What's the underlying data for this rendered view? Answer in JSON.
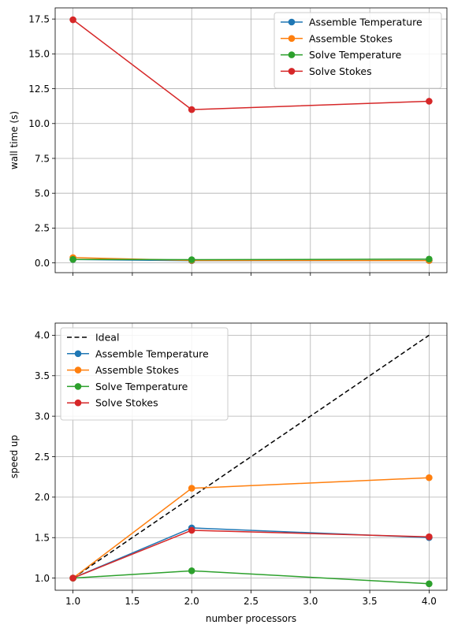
{
  "chart_data": [
    {
      "type": "line",
      "ylabel": "wall time (s)",
      "xlabel": "",
      "x": [
        1.0,
        2.0,
        4.0
      ],
      "xlim": [
        0.85,
        4.15
      ],
      "ylim": [
        -0.7,
        18.3
      ],
      "xticks": [
        1.0,
        1.5,
        2.0,
        2.5,
        3.0,
        3.5,
        4.0
      ],
      "yticks": [
        0.0,
        2.5,
        5.0,
        7.5,
        10.0,
        12.5,
        15.0,
        17.5
      ],
      "yticklabels": [
        "0.0",
        "2.5",
        "5.0",
        "7.5",
        "10.0",
        "12.5",
        "15.0",
        "17.5"
      ],
      "show_xticklabels": false,
      "grid": true,
      "legend_position": "upper-right",
      "series": [
        {
          "name": "Assemble Temperature",
          "color": "#1f77b4",
          "values": [
            0.25,
            0.16,
            0.17
          ]
        },
        {
          "name": "Assemble Stokes",
          "color": "#ff7f0e",
          "values": [
            0.38,
            0.18,
            0.17
          ]
        },
        {
          "name": "Solve Temperature",
          "color": "#2ca02c",
          "values": [
            0.25,
            0.23,
            0.27
          ]
        },
        {
          "name": "Solve Stokes",
          "color": "#d62728",
          "values": [
            17.45,
            11.0,
            11.6
          ]
        }
      ]
    },
    {
      "type": "line",
      "ylabel": "speed up",
      "xlabel": "number processors",
      "x": [
        1.0,
        2.0,
        4.0
      ],
      "xlim": [
        0.85,
        4.15
      ],
      "ylim": [
        0.85,
        4.15
      ],
      "xticks": [
        1.0,
        1.5,
        2.0,
        2.5,
        3.0,
        3.5,
        4.0
      ],
      "xticklabels": [
        "1.0",
        "1.5",
        "2.0",
        "2.5",
        "3.0",
        "3.5",
        "4.0"
      ],
      "yticks": [
        1.0,
        1.5,
        2.0,
        2.5,
        3.0,
        3.5,
        4.0
      ],
      "yticklabels": [
        "1.0",
        "1.5",
        "2.0",
        "2.5",
        "3.0",
        "3.5",
        "4.0"
      ],
      "show_xticklabels": true,
      "grid": true,
      "legend_position": "upper-left",
      "ideal": {
        "name": "Ideal",
        "color": "#000000",
        "x": [
          1.0,
          4.0
        ],
        "values": [
          1.0,
          4.0
        ]
      },
      "series": [
        {
          "name": "Assemble Temperature",
          "color": "#1f77b4",
          "values": [
            1.0,
            1.62,
            1.5
          ]
        },
        {
          "name": "Assemble Stokes",
          "color": "#ff7f0e",
          "values": [
            1.0,
            2.11,
            2.24
          ]
        },
        {
          "name": "Solve Temperature",
          "color": "#2ca02c",
          "values": [
            1.0,
            1.09,
            0.93
          ]
        },
        {
          "name": "Solve Stokes",
          "color": "#d62728",
          "values": [
            1.0,
            1.59,
            1.51
          ]
        }
      ]
    }
  ]
}
